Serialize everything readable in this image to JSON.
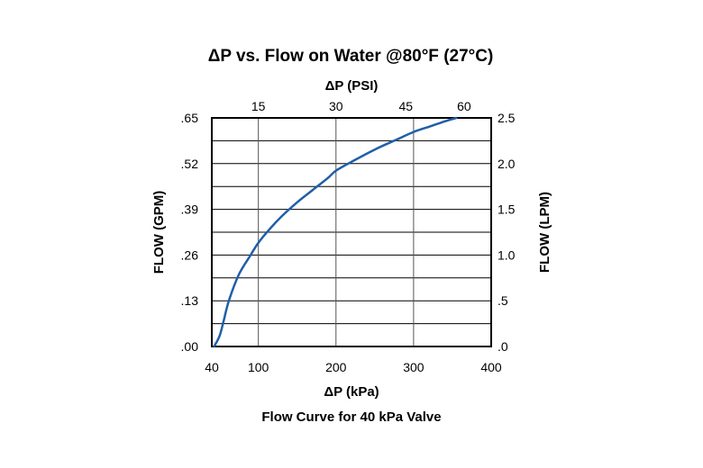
{
  "chart_data": {
    "type": "line",
    "title": "ΔP vs. Flow on Water @80°F (27°C)",
    "subtitle": "Flow Curve for 40 kPa Valve",
    "xlabel": "ΔP (kPa)",
    "x2label": "ΔP (PSI)",
    "ylabel": "FLOW (GPM)",
    "y2label": "FLOW (LPM)",
    "xlim": [
      40,
      400
    ],
    "ylim": [
      0,
      0.65
    ],
    "grid": true,
    "x_ticks": [
      {
        "value": 40,
        "label": "40"
      },
      {
        "value": 100,
        "label": "100"
      },
      {
        "value": 200,
        "label": "200"
      },
      {
        "value": 300,
        "label": "300"
      },
      {
        "value": 400,
        "label": "400"
      }
    ],
    "x2_ticks": [
      {
        "value": 100,
        "label": "15"
      },
      {
        "value": 200,
        "label": "30"
      },
      {
        "value": 290,
        "label": "45"
      },
      {
        "value": 365,
        "label": "60"
      }
    ],
    "y_ticks": [
      {
        "value": 0,
        "label": ".00"
      },
      {
        "value": 0.13,
        "label": ".13"
      },
      {
        "value": 0.26,
        "label": ".26"
      },
      {
        "value": 0.39,
        "label": ".39"
      },
      {
        "value": 0.52,
        "label": ".52"
      },
      {
        "value": 0.65,
        "label": ".65"
      }
    ],
    "y2_ticks": [
      {
        "value": 0,
        "label": ".0"
      },
      {
        "value": 0.13,
        "label": ".5"
      },
      {
        "value": 0.26,
        "label": "1.0"
      },
      {
        "value": 0.39,
        "label": "1.5"
      },
      {
        "value": 0.52,
        "label": "2.0"
      },
      {
        "value": 0.65,
        "label": "2.5"
      }
    ],
    "x_gridlines": [
      100,
      200,
      300
    ],
    "y_gridlines": [
      0.065,
      0.13,
      0.195,
      0.26,
      0.325,
      0.39,
      0.455,
      0.52,
      0.585
    ],
    "series": [
      {
        "color": "#1f5fa8",
        "x": [
          43,
          50,
          55,
          62,
          75,
          90,
          100,
          115,
          130,
          150,
          170,
          190,
          200,
          220,
          250,
          280,
          300,
          320,
          340,
          355
        ],
        "y": [
          0,
          0.03,
          0.07,
          0.13,
          0.205,
          0.26,
          0.295,
          0.335,
          0.37,
          0.41,
          0.445,
          0.48,
          0.5,
          0.525,
          0.56,
          0.59,
          0.61,
          0.625,
          0.64,
          0.65
        ]
      }
    ]
  }
}
